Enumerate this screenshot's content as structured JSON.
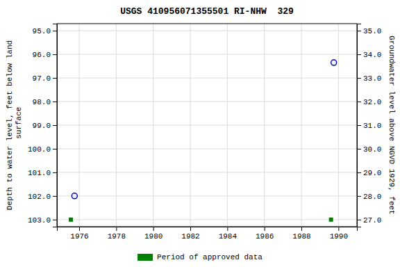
{
  "chart_data": {
    "type": "scatter",
    "title": "USGS 410956071355501 RI-NHW  329",
    "y_label": "Depth to water level, feet below land\n surface",
    "y2_label": "Groundwater level above NGVD 1929, feet",
    "xlim": [
      1974.8,
      1991.0
    ],
    "xticks": [
      1976,
      1978,
      1980,
      1982,
      1984,
      1986,
      1988,
      1990
    ],
    "ylim": [
      103.3,
      94.7
    ],
    "yticks": [
      {
        "value": 95.0,
        "label": "95.0"
      },
      {
        "value": 96.0,
        "label": "96.0"
      },
      {
        "value": 97.0,
        "label": "97.0"
      },
      {
        "value": 98.0,
        "label": "98.0"
      },
      {
        "value": 99.0,
        "label": "99.0"
      },
      {
        "value": 100.0,
        "label": "100.0"
      },
      {
        "value": 101.0,
        "label": "101.0"
      },
      {
        "value": 102.0,
        "label": "102.0"
      },
      {
        "value": 103.0,
        "label": "103.0"
      }
    ],
    "y2lim": [
      26.7,
      35.3
    ],
    "y2ticks": [
      {
        "value": 27.0,
        "label": "27.0"
      },
      {
        "value": 28.0,
        "label": "28.0"
      },
      {
        "value": 29.0,
        "label": "29.0"
      },
      {
        "value": 30.0,
        "label": "30.0"
      },
      {
        "value": 31.0,
        "label": "31.0"
      },
      {
        "value": 32.0,
        "label": "32.0"
      },
      {
        "value": 33.0,
        "label": "33.0"
      },
      {
        "value": 34.0,
        "label": "34.0"
      },
      {
        "value": 35.0,
        "label": "35.0"
      }
    ],
    "grid": true,
    "legend": "bottom",
    "series": [
      {
        "x": [
          1975.75,
          1989.75
        ],
        "values": [
          102.0,
          96.35
        ],
        "color": "#0000cc",
        "marker": "circle"
      },
      {
        "name": "Period of approved data",
        "x": [
          1975.55,
          1989.6
        ],
        "values": [
          103.0,
          103.0
        ],
        "color": "#008000",
        "marker": "square"
      }
    ]
  }
}
